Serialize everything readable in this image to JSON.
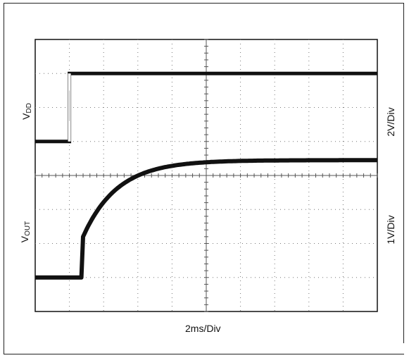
{
  "chart_data": {
    "type": "line",
    "grid": true,
    "x_divisions": 10,
    "y_divisions": 8,
    "xlabel": "2ms/Div",
    "series": [
      {
        "name": "VDD",
        "label_main": "V",
        "label_sub": "DD",
        "scale": "2V/Div",
        "x": [
          0,
          1,
          1.001,
          10
        ],
        "y_div": [
          5,
          5,
          7,
          7
        ]
      },
      {
        "name": "VOUT",
        "label_main": "V",
        "label_sub": "OUT",
        "scale": "1V/Div",
        "x": [
          0,
          1.35,
          1.4,
          2,
          3,
          4,
          5,
          6,
          8,
          10
        ],
        "y_div": [
          1,
          1,
          2.2,
          3.6,
          4.2,
          4.38,
          4.42,
          4.44,
          4.45,
          4.45
        ]
      }
    ]
  },
  "colors": {
    "trace": "#111111",
    "grid": "#777777",
    "frame": "#222222"
  }
}
